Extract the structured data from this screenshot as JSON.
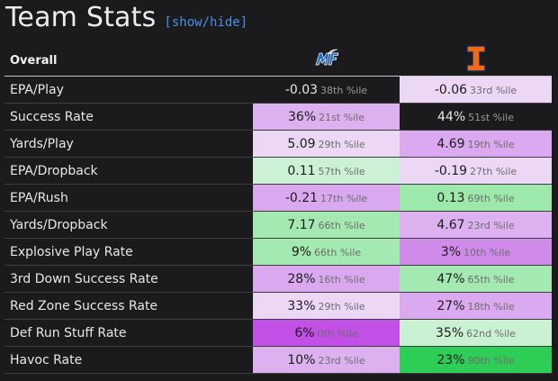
{
  "header": {
    "title": "Team Stats",
    "toggle_label": "[show/hide]"
  },
  "table": {
    "section_label": "Overall",
    "teams": [
      {
        "logo": "mtsu-blue-raiders-logo-icon",
        "color": "#1f6bc9"
      },
      {
        "logo": "illinois-block-i-logo-icon",
        "color": "#f06a1c"
      }
    ],
    "rows": [
      {
        "label": "EPA/Play",
        "a": {
          "value": "-0.03",
          "pct": "38th %ile",
          "bg": "#1b1a1c",
          "dark": true
        },
        "b": {
          "value": "-0.06",
          "pct": "33rd %ile",
          "bg": "#ecd7f5"
        }
      },
      {
        "label": "Success Rate",
        "a": {
          "value": "36%",
          "pct": "21st %ile",
          "bg": "#ddb0ef"
        },
        "b": {
          "value": "44%",
          "pct": "51st %ile",
          "bg": "#1b1a1c",
          "dark": true
        }
      },
      {
        "label": "Yards/Play",
        "a": {
          "value": "5.09",
          "pct": "29th %ile",
          "bg": "#ecd7f5"
        },
        "b": {
          "value": "4.69",
          "pct": "19th %ile",
          "bg": "#dba9ef"
        }
      },
      {
        "label": "EPA/Dropback",
        "a": {
          "value": "0.11",
          "pct": "57th %ile",
          "bg": "#cdf1d4"
        },
        "b": {
          "value": "-0.19",
          "pct": "27th %ile",
          "bg": "#ecd7f5"
        }
      },
      {
        "label": "EPA/Rush",
        "a": {
          "value": "-0.21",
          "pct": "17th %ile",
          "bg": "#d9a8ee"
        },
        "b": {
          "value": "0.13",
          "pct": "69th %ile",
          "bg": "#9de8ab"
        }
      },
      {
        "label": "Yards/Dropback",
        "a": {
          "value": "7.17",
          "pct": "66th %ile",
          "bg": "#a4e9b1"
        },
        "b": {
          "value": "4.67",
          "pct": "23rd %ile",
          "bg": "#ddb0ef"
        }
      },
      {
        "label": "Explosive Play Rate",
        "a": {
          "value": "9%",
          "pct": "66th %ile",
          "bg": "#a4e9b1"
        },
        "b": {
          "value": "3%",
          "pct": "10th %ile",
          "bg": "#cf8aea"
        }
      },
      {
        "label": "3rd Down Success Rate",
        "a": {
          "value": "28%",
          "pct": "16th %ile",
          "bg": "#d9a8ee"
        },
        "b": {
          "value": "47%",
          "pct": "65th %ile",
          "bg": "#a4e9b1"
        }
      },
      {
        "label": "Red Zone Success Rate",
        "a": {
          "value": "33%",
          "pct": "29th %ile",
          "bg": "#ecd7f5"
        },
        "b": {
          "value": "27%",
          "pct": "18th %ile",
          "bg": "#dba9ef"
        }
      },
      {
        "label": "Def Run Stuff Rate",
        "a": {
          "value": "6%",
          "pct": "0th %ile",
          "bg": "#c24fe6"
        },
        "b": {
          "value": "35%",
          "pct": "62nd %ile",
          "bg": "#caf2d2"
        }
      },
      {
        "label": "Havoc Rate",
        "a": {
          "value": "10%",
          "pct": "23rd %ile",
          "bg": "#ddb0ef"
        },
        "b": {
          "value": "23%",
          "pct": "90th %ile",
          "bg": "#2ecd55"
        }
      }
    ]
  }
}
